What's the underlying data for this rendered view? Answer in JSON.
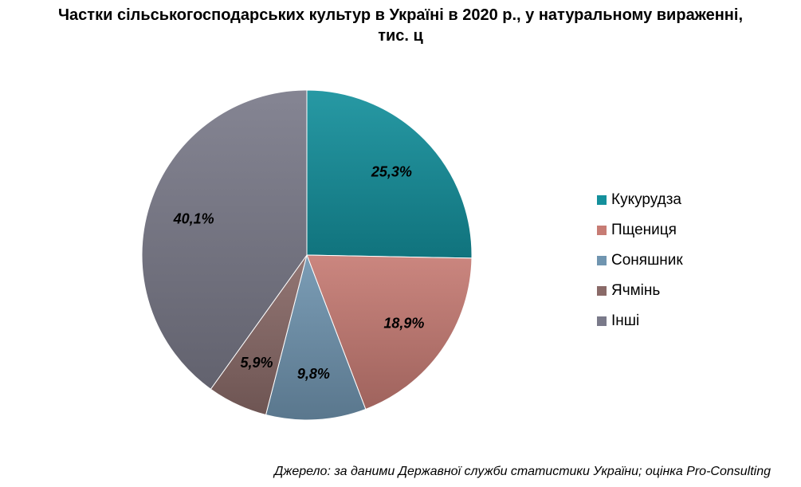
{
  "title": {
    "line1": "Частки сільськогосподарських культур в Україні в 2020 р., у натуральному вираженні,",
    "line2": "тис. ц"
  },
  "chart_data": {
    "type": "pie",
    "categories": [
      "Кукурудза",
      "Пщениця",
      "Соняшник",
      "Ячмінь",
      "Інші"
    ],
    "values": [
      25.3,
      18.9,
      9.8,
      5.9,
      40.1
    ],
    "labels": [
      "25,3%",
      "18,9%",
      "9,8%",
      "5,9%",
      "40,1%"
    ],
    "colors": [
      "#14909c",
      "#c77c74",
      "#7095b0",
      "#8a6a68",
      "#7a7a8a"
    ],
    "legend_position": "right"
  },
  "source": "Джерело: за даними Державної служби статистики України; оцінка Pro-Consulting"
}
